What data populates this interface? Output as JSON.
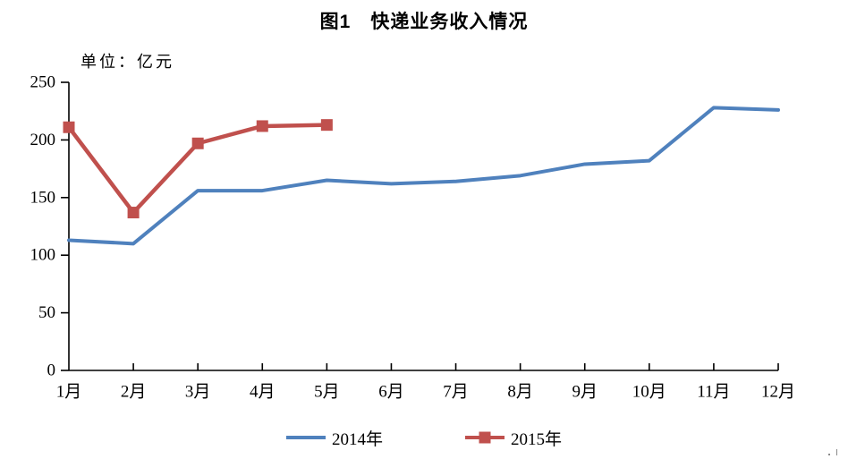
{
  "title": "图1　快递业务收入情况",
  "unit_label": "单位：亿元",
  "colors": {
    "series_2014": "#4F81BD",
    "series_2015": "#C0504D",
    "axis": "#000000",
    "background": "#FFFFFF"
  },
  "chart_data": {
    "type": "line",
    "title": "图1　快递业务收入情况",
    "unit_label": "单位：亿元",
    "categories": [
      "1月",
      "2月",
      "3月",
      "4月",
      "5月",
      "6月",
      "7月",
      "8月",
      "9月",
      "10月",
      "11月",
      "12月"
    ],
    "series": [
      {
        "name": "2014年",
        "color": "#4F81BD",
        "marker": "none",
        "values": [
          113,
          110,
          156,
          156,
          165,
          162,
          164,
          169,
          179,
          182,
          228,
          226
        ]
      },
      {
        "name": "2015年",
        "color": "#C0504D",
        "marker": "square",
        "values": [
          211,
          137,
          197,
          212,
          213
        ]
      }
    ],
    "ylim": [
      0,
      250
    ],
    "ytick_interval": 50,
    "yticks": [
      0,
      50,
      100,
      150,
      200,
      250
    ],
    "grid": false,
    "legend_position": "bottom",
    "x_axis_note": "2015 series has data only for months 1-5"
  }
}
